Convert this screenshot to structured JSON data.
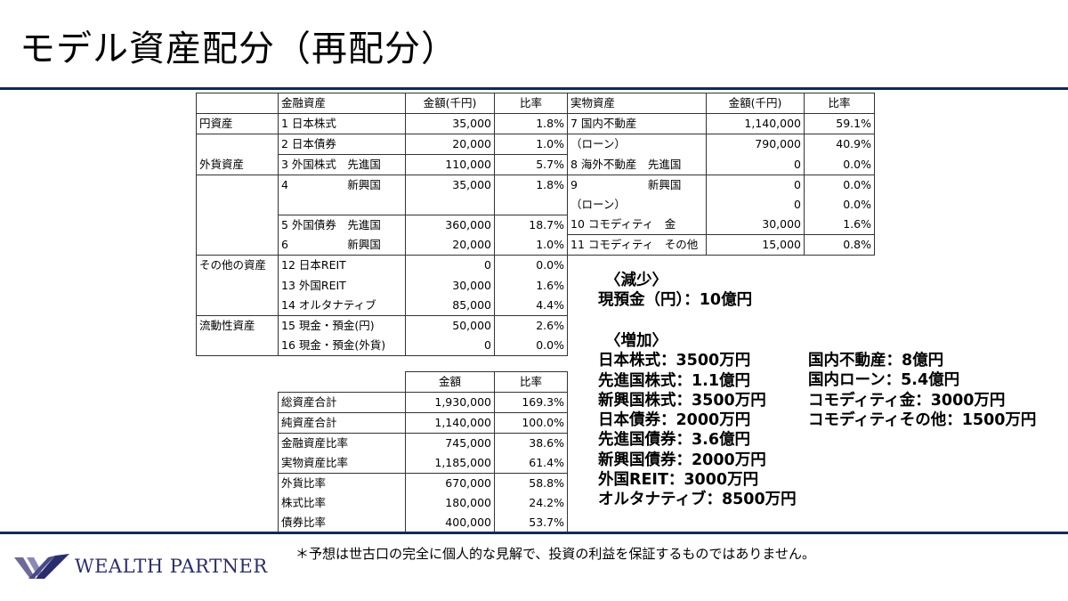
{
  "title": "モデル資産配分（再配分）",
  "main_table": {
    "headers": [
      "",
      "金融資産",
      "金額(千円)",
      "比率",
      "実物資産",
      "金額(千円)",
      "比率"
    ],
    "rows": [
      [
        "円資産",
        "1 日本株式",
        "35,000",
        "1.8%",
        "7 国内不動産",
        "1,140,000",
        "59.1%"
      ],
      [
        "",
        "2 日本債券",
        "20,000",
        "1.0%",
        "（ローン）",
        "790,000",
        "40.9%"
      ],
      [
        "外貨資産",
        "3 外国株式　先進国",
        "110,000",
        "5.7%",
        "8 海外不動産　先進国",
        "0",
        "0.0%"
      ],
      [
        "",
        "4　　　　　 新興国",
        "35,000",
        "1.8%",
        "9　　　　　　 新興国",
        "0",
        "0.0%"
      ],
      [
        "",
        "",
        "",
        "",
        "（ローン）",
        "0",
        "0.0%"
      ],
      [
        "",
        "5 外国債券　先進国",
        "360,000",
        "18.7%",
        "10 コモディティ　金",
        "30,000",
        "1.6%"
      ],
      [
        "",
        "6　　　　　 新興国",
        "20,000",
        "1.0%",
        "11 コモディティ　その他",
        "15,000",
        "0.8%"
      ],
      [
        "その他の資産",
        "12 日本REIT",
        "0",
        "0.0%"
      ],
      [
        "",
        "13 外国REIT",
        "30,000",
        "1.6%"
      ],
      [
        "",
        "14 オルタナティブ",
        "85,000",
        "4.4%"
      ],
      [
        "流動性資産",
        "15 現金・預金(円)",
        "50,000",
        "2.6%"
      ],
      [
        "",
        "16 現金・預金(外貨)",
        "0",
        "0.0%"
      ]
    ]
  },
  "summary_table": {
    "headers": [
      "",
      "金額",
      "比率"
    ],
    "rows": [
      [
        "総資産合計",
        "1,930,000",
        "169.3%"
      ],
      [
        "純資産合計",
        "1,140,000",
        "100.0%"
      ],
      [
        "金融資産比率",
        "745,000",
        "38.6%"
      ],
      [
        "実物資産比率",
        "1,185,000",
        "61.4%"
      ],
      [
        "外貨比率",
        "670,000",
        "58.8%"
      ],
      [
        "株式比率",
        "180,000",
        "24.2%"
      ],
      [
        "債券比率",
        "400,000",
        "53.7%"
      ]
    ]
  },
  "decrease": {
    "heading": "〈減少〉",
    "items": [
      "現預金（円）：10億円"
    ]
  },
  "increase": {
    "heading": "〈増加〉",
    "col1": [
      "日本株式：3500万円",
      "先進国株式：1.1億円",
      "新興国株式：3500万円",
      "日本債券：2000万円",
      "先進国債券：3.6億円",
      "新興国債券：2000万円",
      "外国REIT：3000万円",
      "オルタナティブ：8500万円"
    ],
    "col2": [
      "国内不動産：8億円",
      "国内ローン：5.4億円",
      "コモディティ金：3000万円",
      "コモディティその他：1500万円"
    ]
  },
  "footnote": "＊予想は世古口の完全に個人的な見解で、投資の利益を保証するものではありません。",
  "logo": {
    "text": "WEALTH PARTNER"
  },
  "colors": {
    "navy": "#0d2a5c",
    "logo": "#2a2d6b"
  }
}
